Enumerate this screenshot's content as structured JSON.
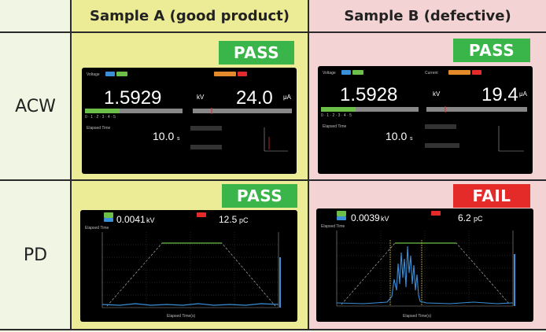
{
  "columns": {
    "sample_a": "Sample A (good product)",
    "sample_b": "Sample B (defective)"
  },
  "rows": {
    "acw": "ACW",
    "pd": "PD"
  },
  "results": {
    "a_acw": "PASS",
    "b_acw": "PASS",
    "a_pd": "PASS",
    "b_pd": "FAIL"
  },
  "acw_screens": {
    "a": {
      "voltage": "1.5929",
      "voltage_unit": "kV",
      "current": "24.0",
      "current_unit": "μA",
      "elapsed_label": "Elapsed Time",
      "elapsed": "10.0",
      "elapsed_unit": "s"
    },
    "b": {
      "voltage": "1.5928",
      "voltage_unit": "kV",
      "current": "19.4",
      "current_unit": "μA",
      "elapsed_label": "Elapsed Time",
      "elapsed": "10.0",
      "elapsed_unit": "s"
    }
  },
  "pd_screens": {
    "a": {
      "voltage": "0.0041",
      "voltage_unit": "kV",
      "charge": "12.5",
      "charge_unit": "pC",
      "elapsed_label": "Elapsed Time",
      "xlabel": "Elapsed Time(s)"
    },
    "b": {
      "voltage": "0.0039",
      "voltage_unit": "kV",
      "charge": "6.2",
      "charge_unit": "pC",
      "elapsed_label": "Elapsed Time",
      "xlabel": "Elapsed Time(s)"
    }
  },
  "colors": {
    "pass": "#3ab54a",
    "fail": "#e52a2a",
    "sample_a_bg": "#ecec96",
    "sample_b_bg": "#f3d3d3",
    "trace_green": "#6cc04a",
    "trace_blue": "#3a8fd8"
  }
}
